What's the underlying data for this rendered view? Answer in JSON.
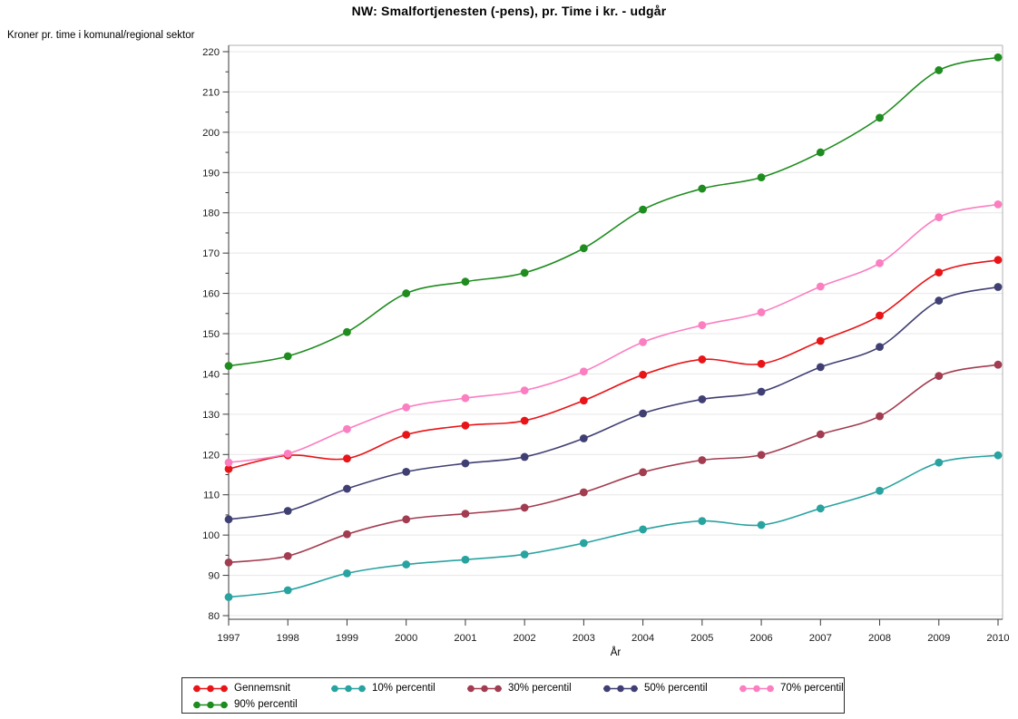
{
  "chart_data": {
    "type": "line",
    "title": "NW: Smalfortjenesten (-pens), pr. Time i kr. - udgår",
    "ylabel": "Kroner pr. time i komunal/regional sektor",
    "xlabel": "År",
    "x": [
      1997,
      1998,
      1999,
      2000,
      2001,
      2002,
      2003,
      2004,
      2005,
      2006,
      2007,
      2008,
      2009,
      2010
    ],
    "ylim": [
      80,
      220
    ],
    "ytick_step": 10,
    "ytick_minor_step": 5,
    "grid": "horizontal",
    "legend_position": "bottom",
    "marker": "filled-circle",
    "series": [
      {
        "name": "Gennemsnit",
        "color": "#e81418",
        "values": [
          116.4,
          119.8,
          119.0,
          124.9,
          127.2,
          128.4,
          133.4,
          139.8,
          143.6,
          142.5,
          148.2,
          154.5,
          165.2,
          168.3
        ]
      },
      {
        "name": "10% percentil",
        "color": "#29a3a0",
        "values": [
          84.6,
          86.3,
          90.5,
          92.7,
          93.9,
          95.2,
          98.0,
          101.4,
          103.5,
          102.5,
          106.6,
          111.0,
          118.0,
          119.8
        ]
      },
      {
        "name": "30% percentil",
        "color": "#a23c50",
        "values": [
          93.2,
          94.8,
          100.2,
          103.9,
          105.3,
          106.8,
          110.6,
          115.6,
          118.6,
          119.9,
          125.0,
          129.5,
          139.5,
          142.3
        ]
      },
      {
        "name": "50% percentil",
        "color": "#403f74",
        "values": [
          103.9,
          106.0,
          111.5,
          115.7,
          117.8,
          119.4,
          124.0,
          130.2,
          133.7,
          135.6,
          141.7,
          146.7,
          158.2,
          161.6
        ]
      },
      {
        "name": "70% percentil",
        "color": "#fb7ec1",
        "values": [
          118.0,
          120.2,
          126.3,
          131.7,
          134.0,
          135.9,
          140.6,
          147.9,
          152.1,
          155.3,
          161.7,
          167.5,
          178.9,
          182.1
        ]
      },
      {
        "name": "90% percentil",
        "color": "#1f8c1f",
        "values": [
          142.0,
          144.4,
          150.4,
          160.0,
          162.9,
          165.1,
          171.2,
          180.8,
          186.0,
          188.8,
          195.0,
          203.6,
          215.4,
          218.6
        ]
      }
    ],
    "colors": {
      "axis": "#3a3a3a",
      "frame": "#b0b0b0",
      "gridline": "#e7e7e7",
      "tick_label": "#1a1a1a"
    }
  }
}
